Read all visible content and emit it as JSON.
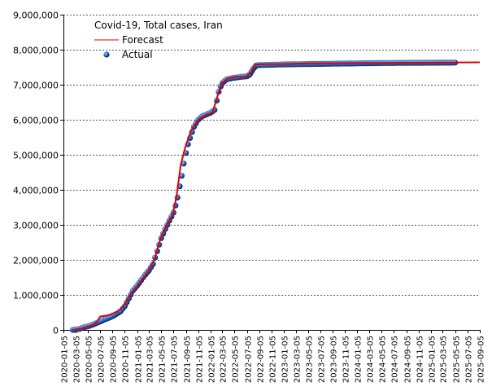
{
  "chart_data": {
    "type": "line",
    "title": "Covid-19, Total cases, Iran",
    "xlabel": "",
    "ylabel": "",
    "ylim": [
      0,
      9000000
    ],
    "y_ticks": [
      0,
      1000000,
      2000000,
      3000000,
      4000000,
      5000000,
      6000000,
      7000000,
      8000000,
      9000000
    ],
    "y_tick_labels": [
      "0",
      "1,000,000",
      "2,000,000",
      "3,000,000",
      "4,000,000",
      "5,000,000",
      "6,000,000",
      "7,000,000",
      "8,000,000",
      "9,000,000"
    ],
    "x_range": [
      "2020-01-05",
      "2025-09-05"
    ],
    "x_tick_labels": [
      "2020-01-05",
      "2020-03-05",
      "2020-05-05",
      "2020-07-05",
      "2020-09-05",
      "2020-11-05",
      "2021-01-05",
      "2021-03-05",
      "2021-05-05",
      "2021-07-05",
      "2021-09-05",
      "2021-11-05",
      "2022-01-05",
      "2022-03-05",
      "2022-05-05",
      "2022-07-05",
      "2022-09-05",
      "2022-11-05",
      "2023-01-05",
      "2023-03-05",
      "2023-05-05",
      "2023-07-05",
      "2023-09-05",
      "2023-11-05",
      "2024-01-05",
      "2024-03-05",
      "2024-05-05",
      "2024-07-05",
      "2024-09-05",
      "2024-11-05",
      "2025-01-05",
      "2025-03-05",
      "2025-05-05",
      "2025-07-05",
      "2025-09-05"
    ],
    "grid": true,
    "legend_position": "top-left",
    "series": [
      {
        "name": "Forecast",
        "kind": "line",
        "color": "#dd0000",
        "x": [
          "2020-02-20",
          "2020-04-01",
          "2020-06-01",
          "2020-06-20",
          "2020-07-05",
          "2020-08-15",
          "2020-10-01",
          "2020-11-01",
          "2020-12-01",
          "2021-01-05",
          "2021-02-20",
          "2021-04-01",
          "2021-05-01",
          "2021-06-01",
          "2021-07-01",
          "2021-07-20",
          "2021-08-10",
          "2021-09-01",
          "2021-10-01",
          "2021-11-05",
          "2021-12-15",
          "2022-01-15",
          "2022-02-05",
          "2022-03-01",
          "2022-04-01",
          "2022-05-01",
          "2022-07-01",
          "2022-07-25",
          "2022-08-15",
          "2022-10-01",
          "2023-01-01",
          "2023-05-01",
          "2024-01-01",
          "2025-01-01",
          "2025-09-10"
        ],
        "y": [
          0,
          40000,
          150000,
          230000,
          380000,
          420000,
          520000,
          700000,
          1000000,
          1250000,
          1600000,
          2000000,
          2600000,
          3000000,
          3300000,
          3800000,
          4700000,
          5200000,
          5700000,
          6000000,
          6150000,
          6200000,
          6600000,
          7050000,
          7180000,
          7220000,
          7240000,
          7350000,
          7580000,
          7585000,
          7590000,
          7610000,
          7620000,
          7630000,
          7640000
        ]
      },
      {
        "name": "Actual",
        "kind": "scatter",
        "color": "#1155bb",
        "x": [
          "2020-02-20",
          "2020-03-05",
          "2020-03-25",
          "2020-04-15",
          "2020-05-05",
          "2020-05-25",
          "2020-06-15",
          "2020-07-05",
          "2020-07-25",
          "2020-08-15",
          "2020-09-05",
          "2020-09-25",
          "2020-10-15",
          "2020-11-05",
          "2020-11-25",
          "2020-12-15",
          "2021-01-05",
          "2021-01-25",
          "2021-02-15",
          "2021-03-05",
          "2021-03-25",
          "2021-04-15",
          "2021-05-05",
          "2021-05-25",
          "2021-06-15",
          "2021-07-05",
          "2021-07-15",
          "2021-07-25",
          "2021-08-05",
          "2021-08-15",
          "2021-08-25",
          "2021-09-05",
          "2021-09-15",
          "2021-09-25",
          "2021-10-05",
          "2021-10-15",
          "2021-10-25",
          "2021-11-05",
          "2021-11-25",
          "2021-12-15",
          "2022-01-05",
          "2022-01-25",
          "2022-02-05",
          "2022-02-15",
          "2022-02-25",
          "2022-03-05",
          "2022-03-25",
          "2022-04-15",
          "2022-05-05",
          "2022-05-25",
          "2022-06-15",
          "2022-07-05",
          "2022-07-20",
          "2022-08-05",
          "2022-08-20",
          "2022-09-05",
          "2022-10-05",
          "2022-11-05",
          "2022-12-05",
          "2023-01-05",
          "2023-03-05",
          "2023-05-05",
          "2023-07-05",
          "2023-09-05",
          "2023-11-05",
          "2024-01-05",
          "2024-03-05",
          "2024-05-05",
          "2024-07-05",
          "2024-09-05",
          "2024-11-05",
          "2025-01-05",
          "2025-03-05",
          "2025-05-05"
        ],
        "y": [
          0,
          7000,
          30000,
          75000,
          100000,
          140000,
          190000,
          240000,
          290000,
          340000,
          390000,
          460000,
          530000,
          680000,
          900000,
          1120000,
          1260000,
          1420000,
          1580000,
          1700000,
          1880000,
          2250000,
          2620000,
          2880000,
          3120000,
          3350000,
          3550000,
          3780000,
          4100000,
          4400000,
          4750000,
          5050000,
          5300000,
          5480000,
          5650000,
          5800000,
          5900000,
          6000000,
          6100000,
          6150000,
          6200000,
          6280000,
          6550000,
          6800000,
          6950000,
          7050000,
          7150000,
          7180000,
          7200000,
          7215000,
          7230000,
          7240000,
          7300000,
          7450000,
          7550000,
          7560000,
          7565000,
          7570000,
          7575000,
          7580000,
          7585000,
          7590000,
          7595000,
          7600000,
          7605000,
          7610000,
          7615000,
          7620000,
          7622000,
          7624000,
          7626000,
          7628000,
          7630000,
          7632000
        ]
      }
    ]
  }
}
